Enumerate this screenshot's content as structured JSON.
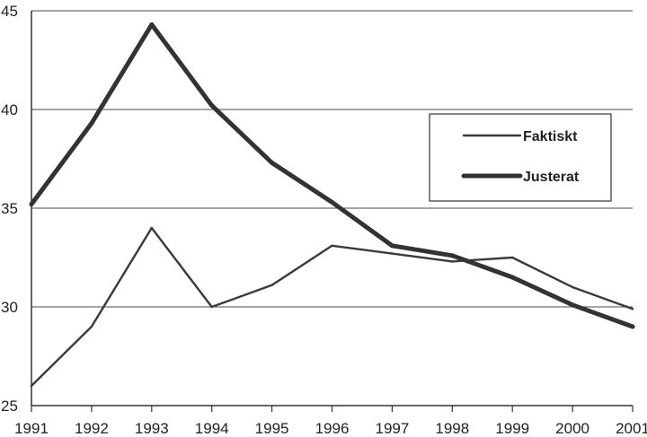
{
  "chart_data": {
    "type": "line",
    "title": "",
    "xlabel": "",
    "ylabel": "",
    "x": [
      1991,
      1992,
      1993,
      1994,
      1995,
      1996,
      1997,
      1998,
      1999,
      2000,
      2001
    ],
    "xlim": [
      1991,
      2001
    ],
    "ylim": [
      25,
      45
    ],
    "yticks": [
      25,
      30,
      35,
      40,
      45
    ],
    "grid": "horizontal",
    "legend_position": "right",
    "series": [
      {
        "name": "Faktiskt",
        "color": "#3a3a3a",
        "weight": "thin",
        "values": [
          26.0,
          29.0,
          34.0,
          30.0,
          31.1,
          33.1,
          32.7,
          32.3,
          32.5,
          31.0,
          29.9
        ]
      },
      {
        "name": "Justerat",
        "color": "#333333",
        "weight": "thick",
        "values": [
          35.2,
          39.3,
          44.3,
          40.2,
          37.3,
          35.3,
          33.1,
          32.6,
          31.5,
          30.1,
          29.0
        ]
      }
    ]
  }
}
